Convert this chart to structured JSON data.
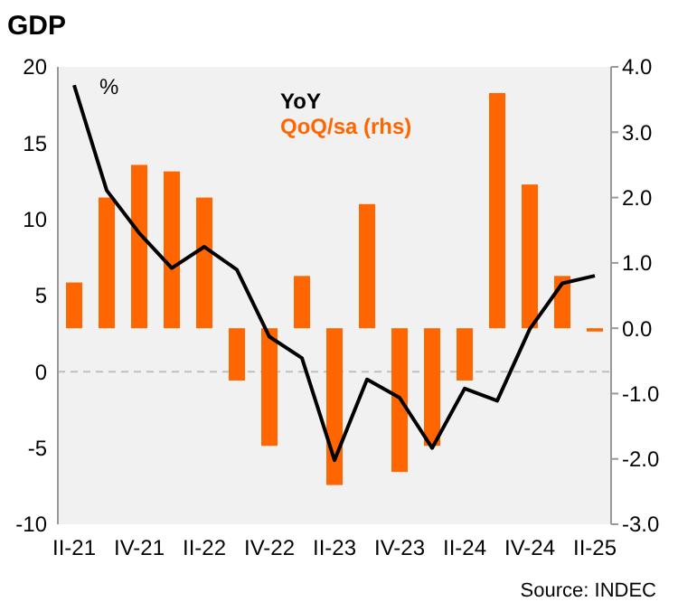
{
  "chart_data": {
    "type": "bar",
    "title": "GDP",
    "ylabel": "%",
    "annotations": [
      "Source: INDEC"
    ],
    "categories": [
      "II-21",
      null,
      "IV-21",
      null,
      "II-22",
      null,
      "IV-22",
      null,
      "II-23",
      null,
      "IV-23",
      null,
      "II-24",
      null,
      "IV-24",
      null,
      "II-25"
    ],
    "series": [
      {
        "name": "YoY",
        "type": "line",
        "color": "#000000",
        "values": [
          18.8,
          11.9,
          9.1,
          6.8,
          8.2,
          6.7,
          2.3,
          0.9,
          -5.8,
          -0.5,
          -1.7,
          -5.0,
          -1.1,
          -1.9,
          2.8,
          5.8,
          6.3
        ]
      },
      {
        "name": "QoQ/sa (rhs)",
        "axis": "y2",
        "color": "#ff6600",
        "values": [
          0.7,
          2.0,
          2.5,
          2.4,
          2.0,
          -0.8,
          -1.8,
          0.8,
          -2.4,
          1.9,
          -2.2,
          -1.8,
          -0.8,
          3.6,
          2.2,
          0.8,
          -0.05
        ]
      }
    ],
    "ylim": [
      -10,
      20
    ],
    "yticks": [
      -10,
      -5,
      0,
      5,
      10,
      15,
      20
    ],
    "y2lim": [
      -3,
      4
    ],
    "y2ticks": [
      {
        "value": -3,
        "label": "-3.0"
      },
      {
        "value": -2,
        "label": "-2.0"
      },
      {
        "value": -1,
        "label": "-1.0"
      },
      {
        "value": 0,
        "label": "0.0"
      },
      {
        "value": 1,
        "label": "1.0"
      },
      {
        "value": 2,
        "label": "2.0"
      },
      {
        "value": 3,
        "label": "3.0"
      },
      {
        "value": 4,
        "label": "4.0"
      }
    ],
    "ref_lines": [
      {
        "axis": "y",
        "value": 0,
        "color": "#c0c0c0",
        "line_style": "dashed"
      }
    ],
    "legend": "top",
    "grid": false
  }
}
